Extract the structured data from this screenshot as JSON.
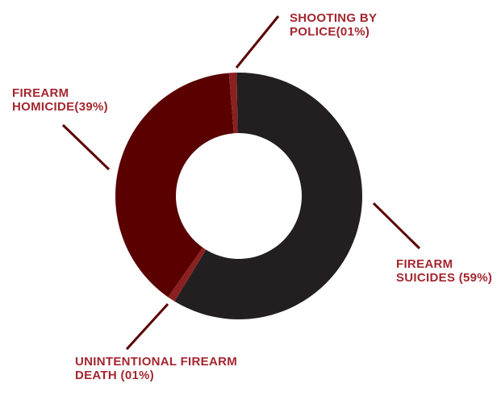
{
  "chart_data": {
    "type": "pie",
    "variant": "donut",
    "title": "",
    "slices": [
      {
        "label_lines": [
          "FIREARM",
          "SUICIDES (59%)"
        ],
        "value": 59,
        "color": "#231f20"
      },
      {
        "label_lines": [
          "UNINTENTIONAL FIREARM",
          "DEATH (01%)"
        ],
        "value": 1,
        "color": "#8b2020"
      },
      {
        "label_lines": [
          "FIREARM",
          "HOMICIDE(39%)"
        ],
        "value": 39,
        "color": "#5a0000"
      },
      {
        "label_lines": [
          "SHOOTING BY",
          "POLICE(01%)"
        ],
        "value": 1,
        "color": "#8b2020"
      }
    ],
    "label_color": "#a3262f",
    "leader_line_color": "#5a0000",
    "legend": "none"
  }
}
